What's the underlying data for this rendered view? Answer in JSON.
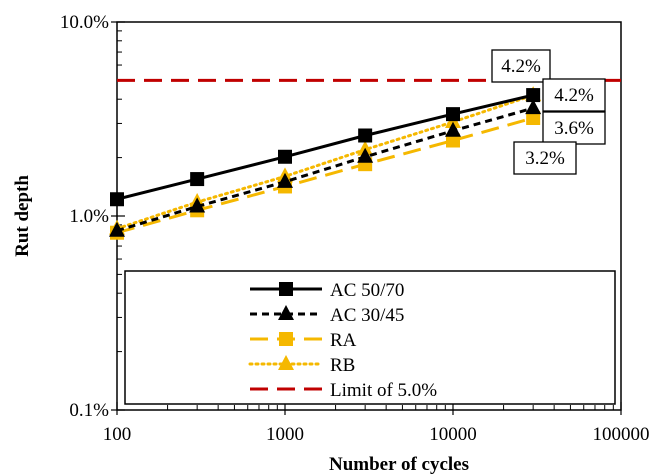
{
  "chart_data": {
    "type": "line",
    "title": "",
    "xlabel": "Number of cycles",
    "ylabel": "Rut depth",
    "x_scale": "log",
    "y_scale": "log",
    "xlim": [
      100,
      100000
    ],
    "ylim": [
      0.1,
      10.0
    ],
    "x_ticks": [
      "100",
      "1000",
      "10000",
      "100000"
    ],
    "y_ticks": [
      "0.1%",
      "1.0%",
      "10.0%"
    ],
    "grid": false,
    "legend_position": "bottom, inside plot",
    "series": [
      {
        "name": "AC 50/70",
        "color": "#000000",
        "style": "solid",
        "marker": "square",
        "x": [
          100,
          300,
          1000,
          3000,
          10000,
          30000
        ],
        "y": [
          1.22,
          1.55,
          2.02,
          2.6,
          3.35,
          4.2
        ]
      },
      {
        "name": "AC 30/45",
        "color": "#000000",
        "style": "dashed",
        "marker": "triangle",
        "x": [
          100,
          300,
          1000,
          3000,
          10000,
          30000
        ],
        "y": [
          0.84,
          1.12,
          1.5,
          2.02,
          2.75,
          3.6
        ]
      },
      {
        "name": "RA",
        "color": "#f5b800",
        "style": "longdash",
        "marker": "square",
        "x": [
          100,
          300,
          1000,
          3000,
          10000,
          30000
        ],
        "y": [
          0.82,
          1.07,
          1.42,
          1.85,
          2.45,
          3.2
        ]
      },
      {
        "name": "RB",
        "color": "#f5b800",
        "style": "dotted",
        "marker": "triangle",
        "x": [
          100,
          300,
          1000,
          3000,
          10000,
          30000
        ],
        "y": [
          0.86,
          1.18,
          1.6,
          2.2,
          3.05,
          4.2
        ]
      },
      {
        "name": "Limit of 5.0%",
        "color": "#c00000",
        "style": "longdash",
        "marker": "none",
        "x": [
          100,
          100000
        ],
        "y": [
          5.0,
          5.0
        ]
      }
    ],
    "annotations": [
      "4.2%",
      "4.2%",
      "3.6%",
      "3.2%"
    ]
  }
}
